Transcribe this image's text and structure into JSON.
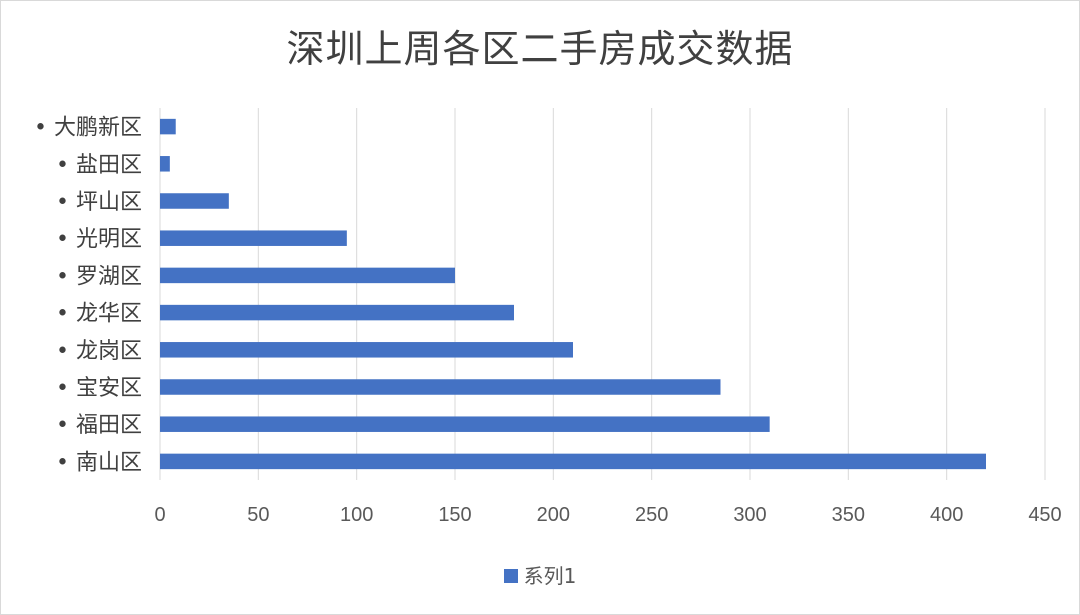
{
  "chart_data": {
    "type": "bar",
    "orientation": "horizontal",
    "title": "深圳上周各区二手房成交数据",
    "categories": [
      "大鹏新区",
      "盐田区",
      "坪山区",
      "光明区",
      "罗湖区",
      "龙华区",
      "龙岗区",
      "宝安区",
      "福田区",
      "南山区"
    ],
    "series": [
      {
        "name": "系列1",
        "values": [
          8,
          5,
          35,
          95,
          150,
          180,
          210,
          285,
          310,
          420
        ]
      }
    ],
    "xlim": [
      0,
      450
    ],
    "xticks": [
      0,
      50,
      100,
      150,
      200,
      250,
      300,
      350,
      400,
      450
    ],
    "bar_color": "#4472c4",
    "grid": "vertical",
    "legend_position": "bottom",
    "category_bullet": "•"
  }
}
